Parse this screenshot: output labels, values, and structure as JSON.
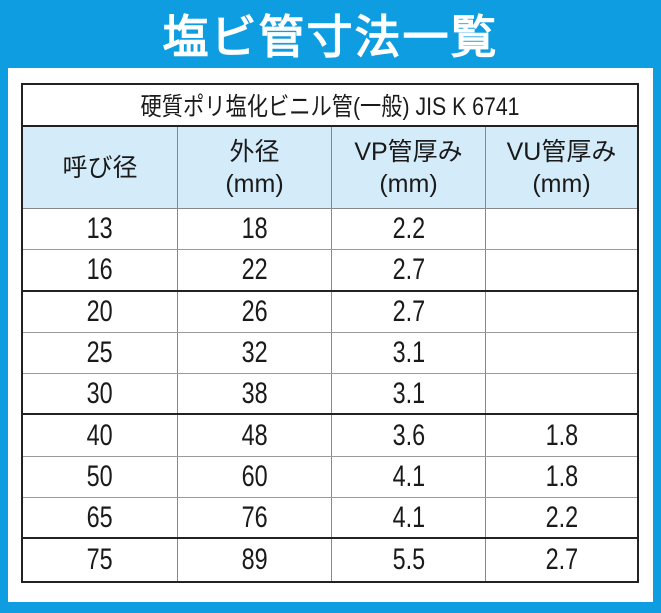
{
  "page": {
    "title": "塩ビ管寸法一覧",
    "colors": {
      "frame_blue": "#0f9de2",
      "header_bg": "#d4ebf9",
      "text": "#1a1a1a"
    }
  },
  "table": {
    "caption": "硬質ポリ塩化ビニル管(一般) JIS K 6741",
    "headers": [
      {
        "line1": "呼び径",
        "line2": ""
      },
      {
        "line1": "外径",
        "line2": "(mm)"
      },
      {
        "line1": "VP管厚み",
        "line2": "(mm)"
      },
      {
        "line1": "VU管厚み",
        "line2": "(mm)"
      }
    ],
    "rows": [
      [
        "13",
        "18",
        "2.2",
        ""
      ],
      [
        "16",
        "22",
        "2.7",
        ""
      ],
      [
        "20",
        "26",
        "2.7",
        ""
      ],
      [
        "25",
        "32",
        "3.1",
        ""
      ],
      [
        "30",
        "38",
        "3.1",
        ""
      ],
      [
        "40",
        "48",
        "3.6",
        "1.8"
      ],
      [
        "50",
        "60",
        "4.1",
        "1.8"
      ],
      [
        "65",
        "76",
        "4.1",
        "2.2"
      ],
      [
        "75",
        "89",
        "5.5",
        "2.7"
      ]
    ]
  }
}
